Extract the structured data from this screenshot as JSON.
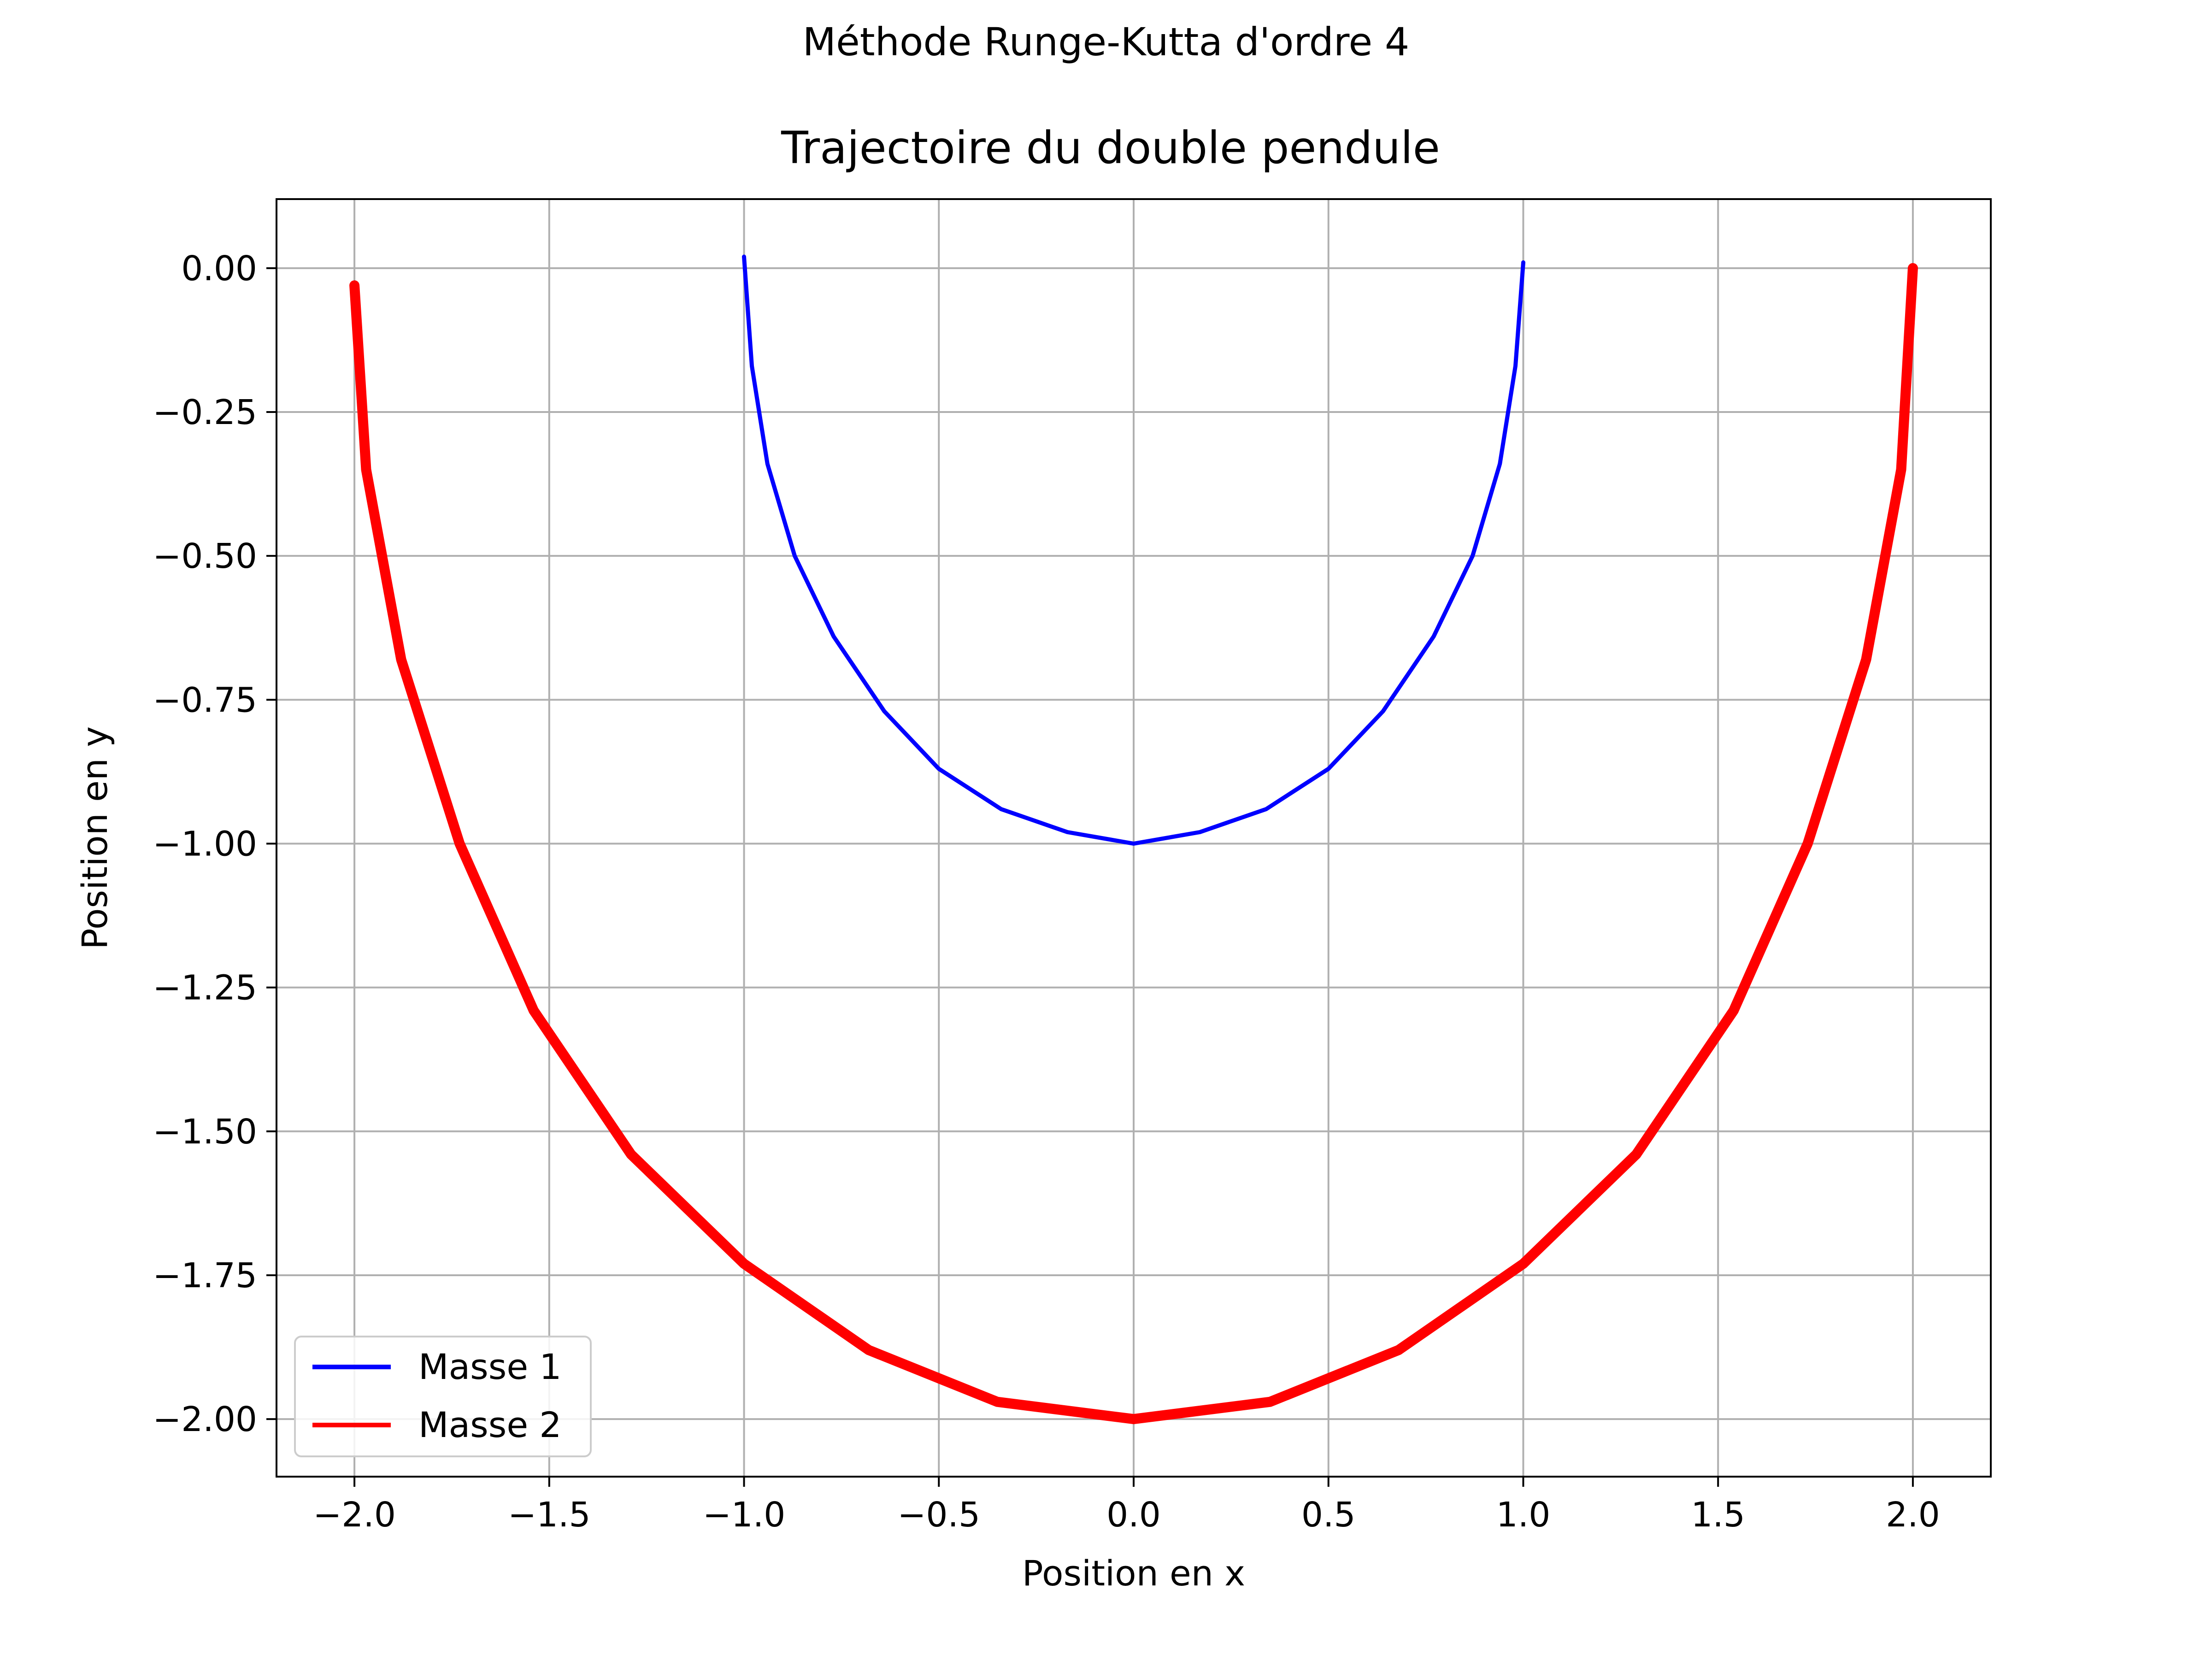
{
  "figure": {
    "suptitle": "Méthode Runge-Kutta d'ordre 4"
  },
  "chart_data": {
    "type": "line",
    "title": "Trajectoire du double pendule",
    "xlabel": "Position en x",
    "ylabel": "Position en y",
    "xlim": [
      -2.2,
      2.2
    ],
    "ylim": [
      -2.1,
      0.12
    ],
    "xticks": [
      -2.0,
      -1.5,
      -1.0,
      -0.5,
      0.0,
      0.5,
      1.0,
      1.5,
      2.0
    ],
    "xtick_labels": [
      "−2.0",
      "−1.5",
      "−1.0",
      "−0.5",
      "0.0",
      "0.5",
      "1.0",
      "1.5",
      "2.0"
    ],
    "yticks": [
      0.0,
      -0.25,
      -0.5,
      -0.75,
      -1.0,
      -1.25,
      -1.5,
      -1.75,
      -2.0
    ],
    "ytick_labels": [
      "0.00",
      "−0.25",
      "−0.50",
      "−0.75",
      "−1.00",
      "−1.25",
      "−1.50",
      "−1.75",
      "−2.00"
    ],
    "grid": true,
    "legend_position": "lower-left",
    "series": [
      {
        "name": "Masse 1",
        "color": "#0000ff",
        "x": [
          -1.0,
          -0.98,
          -0.94,
          -0.87,
          -0.77,
          -0.64,
          -0.5,
          -0.34,
          -0.17,
          0.0,
          0.17,
          0.34,
          0.5,
          0.64,
          0.77,
          0.87,
          0.94,
          0.98,
          1.0
        ],
        "y": [
          0.02,
          -0.17,
          -0.34,
          -0.5,
          -0.64,
          -0.77,
          -0.87,
          -0.94,
          -0.98,
          -1.0,
          -0.98,
          -0.94,
          -0.87,
          -0.77,
          -0.64,
          -0.5,
          -0.34,
          -0.17,
          0.01
        ]
      },
      {
        "name": "Masse 2",
        "color": "#ff0000",
        "x": [
          -2.0,
          -1.97,
          -1.88,
          -1.73,
          -1.54,
          -1.29,
          -1.0,
          -0.68,
          -0.35,
          0.0,
          0.35,
          0.68,
          1.0,
          1.29,
          1.54,
          1.73,
          1.88,
          1.97,
          2.0
        ],
        "y": [
          -0.03,
          -0.35,
          -0.68,
          -1.0,
          -1.29,
          -1.54,
          -1.73,
          -1.88,
          -1.97,
          -2.0,
          -1.97,
          -1.88,
          -1.73,
          -1.54,
          -1.29,
          -1.0,
          -0.68,
          -0.35,
          0.0
        ]
      }
    ]
  }
}
